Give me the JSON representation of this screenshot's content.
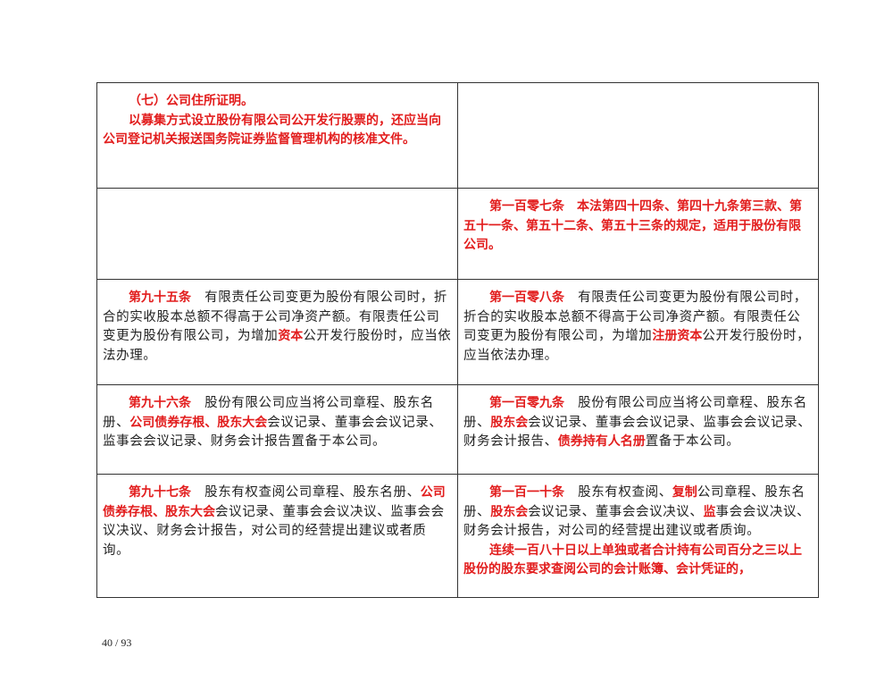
{
  "table": {
    "rows": [
      {
        "left": [
          [
            {
              "text": "（七）公司住所证明。",
              "red": true
            }
          ],
          [
            {
              "text": "以募集方式设立股份有限公司公开发行股票的，还应当向公司登记机关报送国务院证券监督管理机构的核准文件。",
              "red": true
            }
          ]
        ],
        "right": []
      },
      {
        "left": [],
        "right": [
          [
            {
              "text": "第一百零七条　本法第四十四条、第四十九条第三款、第五十一条、第五十二条、第五十三条的规定，适用于股份有限公司。",
              "red": true
            }
          ]
        ]
      },
      {
        "left": [
          [
            {
              "text": "第九十五条",
              "red": true
            },
            "　有限责任公司变更为股份有限公司时，折合的实收股本总额不得高于公司净资产额。有限责任公司变更为股份有限公司，为增加",
            {
              "text": "资本",
              "red": true
            },
            "公开发行股份时，应当依法办理。"
          ]
        ],
        "right": [
          [
            {
              "text": "第一百零八条",
              "red": true
            },
            "　有限责任公司变更为股份有限公司时，折合的实收股本总额不得高于公司净资产额。有限责任公司变更为股份有限公司，为增加",
            {
              "text": "注册资本",
              "red": true
            },
            "公开发行股份时，应当依法办理。"
          ]
        ]
      },
      {
        "left": [
          [
            {
              "text": "第九十六条",
              "red": true
            },
            "　股份有限公司应当将公司章程、股东名册、",
            {
              "text": "公司债券存根、股东大会",
              "red": true
            },
            "会议记录、董事会会议记录、监事会会议记录、财务会计报告置备于本公司。"
          ]
        ],
        "right": [
          [
            {
              "text": "第一百零九条",
              "red": true
            },
            "　股份有限公司应当将公司章程、股东名册、",
            {
              "text": "股东会",
              "red": true
            },
            "会议记录、董事会会议记录、监事会会议记录、财务会计报告、",
            {
              "text": "债券持有人名册",
              "red": true
            },
            "置备于本公司。"
          ]
        ]
      },
      {
        "left": [
          [
            {
              "text": "第九十七条",
              "red": true
            },
            "　股东有权查阅公司章程、股东名册、",
            {
              "text": "公司债券存根、股东大会",
              "red": true
            },
            "会议记录、董事会会议决议、监事会会议决议、财务会计报告，对公司的经营提出建议或者质询。"
          ]
        ],
        "right": [
          [
            {
              "text": "第一百一十条",
              "red": true
            },
            "　股东有权查阅、",
            {
              "text": "复制",
              "red": true
            },
            "公司章程、股东名册、",
            {
              "text": "股东会",
              "red": true
            },
            "会议记录、董事会会议决议、",
            {
              "text": "监",
              "red": true
            },
            "事会会议决议、财务会计报告，对公司的经营提出建议或者质询。"
          ],
          [
            {
              "text": "连续一百八十日以上单独或者合计持有公司百分之三以上股份的股东要求查阅公司的会计账簿、会计凭证的，",
              "red": true
            }
          ]
        ]
      }
    ]
  },
  "footer": {
    "page": "40 / 93"
  }
}
